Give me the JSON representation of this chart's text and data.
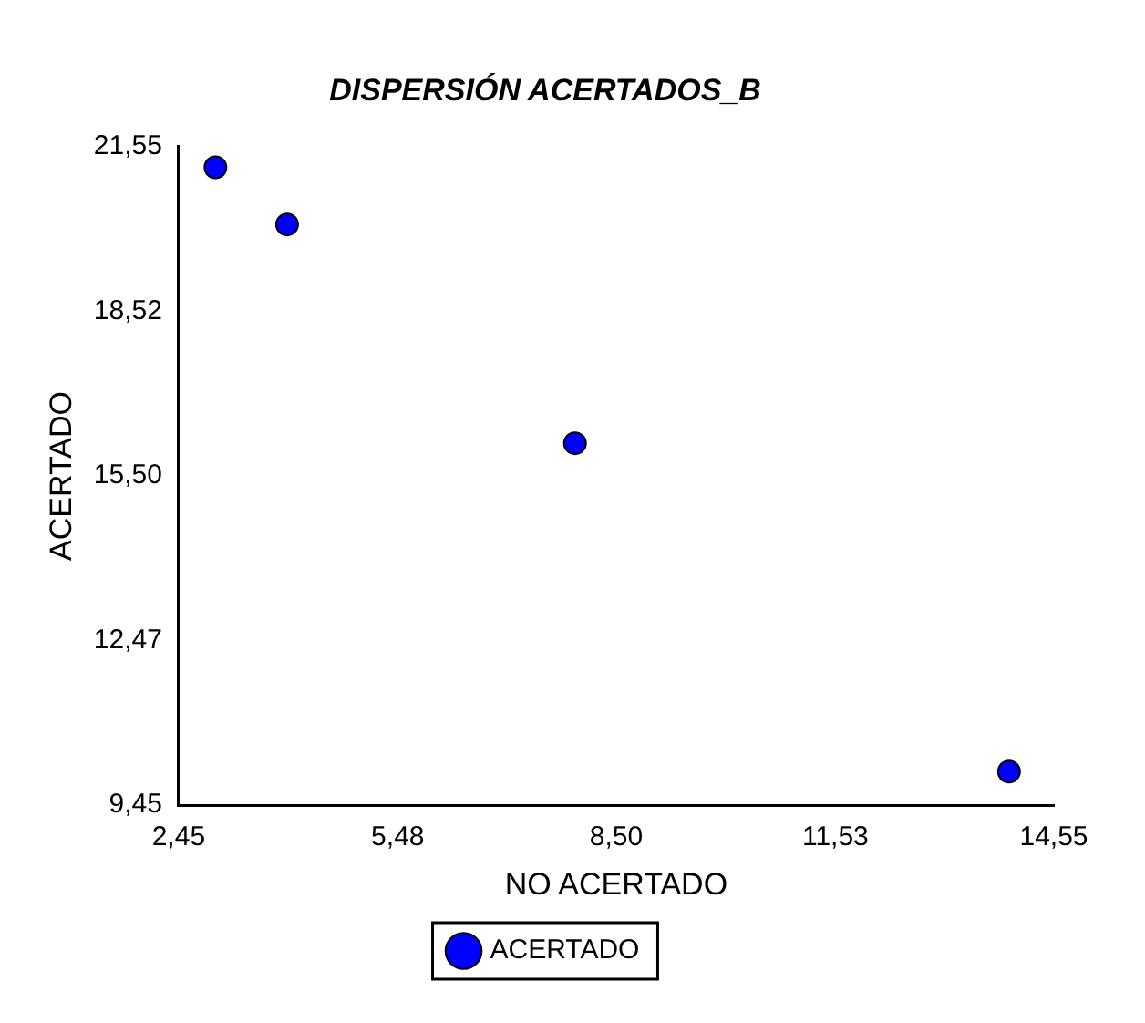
{
  "chart_data": {
    "type": "scatter",
    "title": "DISPERSIÓN ACERTADOS_B",
    "xlabel": "NO ACERTADO",
    "ylabel": "ACERTADO",
    "x": [
      2.96,
      3.95,
      7.93,
      13.93
    ],
    "series": [
      {
        "name": "ACERTADO",
        "color": "#0000ff",
        "values": [
          21.17,
          20.12,
          16.1,
          10.07
        ]
      }
    ],
    "xlim": [
      2.45,
      14.55
    ],
    "xticks": [
      {
        "value": 2.45,
        "label": "2,45"
      },
      {
        "value": 5.48,
        "label": "5,48"
      },
      {
        "value": 8.5,
        "label": "8,50"
      },
      {
        "value": 11.53,
        "label": "11,53"
      },
      {
        "value": 14.55,
        "label": "14,55"
      }
    ],
    "ylim": [
      9.45,
      21.55
    ],
    "yticks": [
      {
        "value": 9.45,
        "label": "9,45"
      },
      {
        "value": 12.47,
        "label": "12,47"
      },
      {
        "value": 15.5,
        "label": "15,50"
      },
      {
        "value": 18.52,
        "label": "18,52"
      },
      {
        "value": 21.55,
        "label": "21,55"
      }
    ],
    "grid": false,
    "legend": "bottom",
    "marker": "circle"
  }
}
